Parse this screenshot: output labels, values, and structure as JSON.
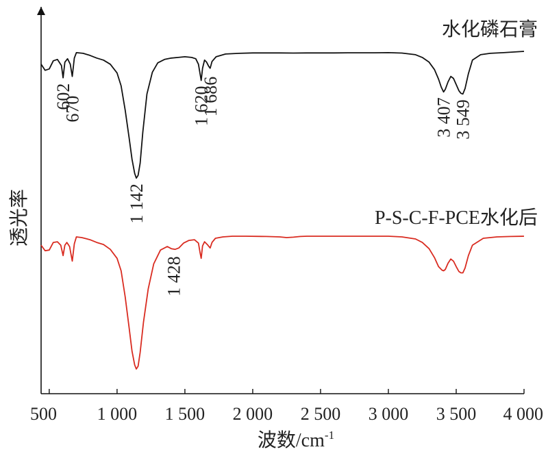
{
  "chart_data": {
    "type": "line",
    "xlabel": "波数/cm",
    "xlabel_sup": "-1",
    "ylabel": "透光率",
    "xlim": [
      440,
      4000
    ],
    "xticks": [
      500,
      1000,
      1500,
      2000,
      2500,
      3000,
      3500,
      4000
    ],
    "xtick_labels": [
      "500",
      "1 000",
      "1 500",
      "2 000",
      "2 500",
      "3 000",
      "3 500",
      "4 000"
    ],
    "grid": false,
    "y_ticks_shown": false,
    "series": [
      {
        "name": "水化磷石膏",
        "color": "#111111",
        "x": [
          440,
          470,
          500,
          530,
          560,
          590,
          602,
          615,
          635,
          655,
          670,
          685,
          700,
          750,
          800,
          850,
          900,
          950,
          1000,
          1030,
          1060,
          1090,
          1110,
          1130,
          1142,
          1155,
          1170,
          1190,
          1220,
          1260,
          1300,
          1350,
          1400,
          1450,
          1500,
          1550,
          1580,
          1600,
          1610,
          1620,
          1630,
          1645,
          1660,
          1675,
          1686,
          1700,
          1730,
          1800,
          1900,
          2000,
          2100,
          2200,
          2300,
          2400,
          2500,
          2600,
          2700,
          2800,
          2900,
          3000,
          3100,
          3200,
          3250,
          3300,
          3340,
          3370,
          3390,
          3407,
          3420,
          3440,
          3460,
          3480,
          3500,
          3520,
          3535,
          3549,
          3565,
          3590,
          3620,
          3680,
          3750,
          3850,
          4000
        ],
        "y": [
          88.0,
          83.5,
          84.5,
          90.5,
          91.5,
          87.0,
          78.0,
          89.5,
          92.0,
          88.0,
          79.0,
          92.5,
          96.5,
          96.0,
          94.5,
          92.5,
          91.0,
          88.0,
          81.5,
          72.0,
          54.0,
          33.0,
          18.0,
          7.5,
          4.0,
          6.0,
          15.0,
          38.0,
          66.0,
          82.0,
          89.0,
          91.5,
          92.5,
          93.0,
          93.5,
          93.0,
          92.0,
          88.0,
          82.0,
          76.0,
          85.0,
          91.0,
          89.5,
          86.5,
          85.0,
          90.0,
          93.5,
          95.5,
          96.0,
          96.3,
          96.3,
          96.3,
          96.2,
          96.3,
          96.3,
          96.3,
          96.4,
          96.4,
          96.4,
          96.5,
          96.2,
          95.0,
          93.0,
          89.5,
          84.0,
          77.0,
          71.0,
          67.5,
          69.5,
          75.0,
          79.0,
          77.5,
          73.0,
          68.5,
          66.5,
          66.0,
          70.0,
          81.0,
          91.0,
          95.0,
          96.0,
          96.5,
          97.5
        ]
      },
      {
        "name": "P-S-C-F-PCE水化后",
        "color": "#d92b20",
        "x": [
          440,
          470,
          500,
          530,
          560,
          585,
          602,
          615,
          630,
          650,
          670,
          685,
          700,
          740,
          800,
          850,
          900,
          950,
          1000,
          1030,
          1060,
          1090,
          1110,
          1130,
          1142,
          1155,
          1170,
          1195,
          1230,
          1270,
          1320,
          1370,
          1400,
          1428,
          1455,
          1490,
          1530,
          1570,
          1600,
          1612,
          1620,
          1630,
          1645,
          1665,
          1686,
          1700,
          1725,
          1780,
          1850,
          1950,
          2100,
          2200,
          2250,
          2300,
          2350,
          2400,
          2500,
          2600,
          2700,
          2800,
          2900,
          3000,
          3100,
          3200,
          3250,
          3300,
          3340,
          3370,
          3395,
          3407,
          3420,
          3440,
          3460,
          3480,
          3500,
          3520,
          3535,
          3549,
          3565,
          3590,
          3620,
          3700,
          3800,
          3900,
          4000
        ],
        "y": [
          93.5,
          89.5,
          90.0,
          95.5,
          96.0,
          93.5,
          86.0,
          93.5,
          95.5,
          92.5,
          82.0,
          94.5,
          99.5,
          99.0,
          97.5,
          95.5,
          94.0,
          90.5,
          84.0,
          75.0,
          56.0,
          33.0,
          17.0,
          7.0,
          4.0,
          6.0,
          16.0,
          38.0,
          62.0,
          80.0,
          90.0,
          92.5,
          91.0,
          90.5,
          91.5,
          95.0,
          97.0,
          97.5,
          95.0,
          88.0,
          84.0,
          93.0,
          96.0,
          94.0,
          91.5,
          95.5,
          98.5,
          99.5,
          100.0,
          100.0,
          99.8,
          99.5,
          99.0,
          99.3,
          99.8,
          100.0,
          100.0,
          100.0,
          100.0,
          100.0,
          100.0,
          100.0,
          99.5,
          98.0,
          95.5,
          91.0,
          84.5,
          78.0,
          75.5,
          75.0,
          76.0,
          80.5,
          83.5,
          82.0,
          78.0,
          74.5,
          73.5,
          73.5,
          77.0,
          86.0,
          93.5,
          98.5,
          99.5,
          99.8,
          100.0
        ]
      }
    ],
    "annotations": [
      {
        "series": 0,
        "x": 602,
        "label": "602"
      },
      {
        "series": 0,
        "x": 670,
        "label": "670"
      },
      {
        "series": 0,
        "x": 1142,
        "label": "1 142"
      },
      {
        "series": 0,
        "x": 1620,
        "label": "1 620"
      },
      {
        "series": 0,
        "x": 1686,
        "label": "1 686"
      },
      {
        "series": 0,
        "x": 3407,
        "label": "3 407"
      },
      {
        "series": 0,
        "x": 3549,
        "label": "3 549"
      },
      {
        "series": 1,
        "x": 1428,
        "label": "1 428"
      }
    ]
  }
}
